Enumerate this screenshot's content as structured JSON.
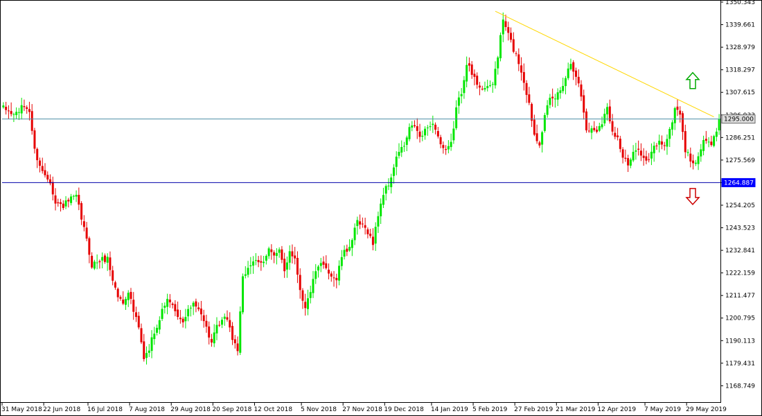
{
  "colors": {
    "background": "#ffffff",
    "frame": "#000000",
    "bull": "#00e600",
    "bear": "#e60000",
    "trendline": "#ffd700",
    "resistance_line": "#4e8fa6",
    "support_line": "#0000aa",
    "resistance_tag_bg": "#dddddd",
    "support_tag_bg": "#0000ff",
    "arrow_up": "#00aa00",
    "arrow_down": "#cc0000"
  },
  "chart_data": {
    "type": "candlestick",
    "ylim": [
      1161.0,
      1350.343
    ],
    "y_ticks": [
      1350.343,
      1339.661,
      1328.979,
      1318.297,
      1307.615,
      1296.933,
      1286.251,
      1275.569,
      1264.887,
      1254.205,
      1243.523,
      1232.841,
      1222.159,
      1211.477,
      1200.795,
      1190.113,
      1179.431,
      1168.749
    ],
    "y_tick_labels": [
      "1350.343",
      "1339.661",
      "1328.979",
      "1318.297",
      "1307.615",
      "1296.933",
      "1286.251",
      "1275.569",
      "1264.887",
      "1254.205",
      "1243.523",
      "1232.841",
      "1222.159",
      "1211.477",
      "1200.795",
      "1190.113",
      "1179.431",
      "1168.749"
    ],
    "x_tick_labels": [
      "31 May 2018",
      "22 Jun 2018",
      "16 Jul 2018",
      "7 Aug 2018",
      "29 Aug 2018",
      "20 Sep 2018",
      "12 Oct 2018",
      "5 Nov 2018",
      "27 Nov 2018",
      "19 Dec 2018",
      "14 Jan 2019",
      "5 Feb 2019",
      "27 Feb 2019",
      "21 Mar 2019",
      "12 Apr 2019",
      "7 May 2019",
      "29 May 2019"
    ],
    "x_tick_candle_index": [
      0,
      16,
      33,
      49,
      65,
      81,
      97,
      115,
      131,
      147,
      165,
      181,
      197,
      213,
      229,
      247,
      263
    ],
    "close_anchors": [
      [
        0,
        1300.0
      ],
      [
        4,
        1297.0
      ],
      [
        8,
        1301.0
      ],
      [
        10,
        1299.0
      ],
      [
        12,
        1280.0
      ],
      [
        15,
        1270.0
      ],
      [
        18,
        1266.0
      ],
      [
        20,
        1255.0
      ],
      [
        23,
        1254.0
      ],
      [
        26,
        1257.0
      ],
      [
        28,
        1258.0
      ],
      [
        31,
        1243.0
      ],
      [
        34,
        1226.0
      ],
      [
        37,
        1228.0
      ],
      [
        40,
        1229.0
      ],
      [
        42,
        1219.0
      ],
      [
        44,
        1211.0
      ],
      [
        46,
        1208.0
      ],
      [
        48,
        1214.0
      ],
      [
        50,
        1204.0
      ],
      [
        52,
        1196.0
      ],
      [
        54,
        1181.0
      ],
      [
        56,
        1186.0
      ],
      [
        58,
        1195.0
      ],
      [
        60,
        1200.0
      ],
      [
        62,
        1208.0
      ],
      [
        64,
        1209.0
      ],
      [
        66,
        1203.0
      ],
      [
        68,
        1199.0
      ],
      [
        70,
        1201.0
      ],
      [
        72,
        1207.0
      ],
      [
        74,
        1206.0
      ],
      [
        76,
        1204.0
      ],
      [
        78,
        1196.0
      ],
      [
        80,
        1189.0
      ],
      [
        82,
        1196.0
      ],
      [
        84,
        1199.0
      ],
      [
        86,
        1201.0
      ],
      [
        88,
        1191.0
      ],
      [
        90,
        1186.0
      ],
      [
        92,
        1219.0
      ],
      [
        94,
        1225.0
      ],
      [
        96,
        1228.0
      ],
      [
        98,
        1226.0
      ],
      [
        100,
        1227.0
      ],
      [
        102,
        1235.0
      ],
      [
        104,
        1230.0
      ],
      [
        106,
        1232.0
      ],
      [
        108,
        1223.0
      ],
      [
        110,
        1233.0
      ],
      [
        112,
        1229.0
      ],
      [
        114,
        1215.0
      ],
      [
        116,
        1205.0
      ],
      [
        118,
        1214.0
      ],
      [
        120,
        1222.0
      ],
      [
        122,
        1226.0
      ],
      [
        124,
        1225.0
      ],
      [
        126,
        1221.0
      ],
      [
        128,
        1219.0
      ],
      [
        130,
        1230.0
      ],
      [
        132,
        1233.0
      ],
      [
        134,
        1238.0
      ],
      [
        136,
        1246.0
      ],
      [
        138,
        1244.0
      ],
      [
        140,
        1242.0
      ],
      [
        142,
        1236.0
      ],
      [
        144,
        1250.0
      ],
      [
        146,
        1260.0
      ],
      [
        148,
        1264.0
      ],
      [
        150,
        1272.0
      ],
      [
        152,
        1280.0
      ],
      [
        154,
        1282.0
      ],
      [
        156,
        1290.0
      ],
      [
        158,
        1292.0
      ],
      [
        160,
        1286.0
      ],
      [
        162,
        1289.0
      ],
      [
        164,
        1293.0
      ],
      [
        166,
        1291.0
      ],
      [
        168,
        1283.0
      ],
      [
        170,
        1279.0
      ],
      [
        172,
        1283.0
      ],
      [
        174,
        1300.0
      ],
      [
        176,
        1308.0
      ],
      [
        178,
        1322.0
      ],
      [
        180,
        1316.0
      ],
      [
        182,
        1312.0
      ],
      [
        184,
        1310.0
      ],
      [
        186,
        1309.0
      ],
      [
        188,
        1312.0
      ],
      [
        190,
        1325.0
      ],
      [
        192,
        1342.0
      ],
      [
        194,
        1335.0
      ],
      [
        196,
        1328.0
      ],
      [
        198,
        1322.0
      ],
      [
        200,
        1313.0
      ],
      [
        202,
        1302.0
      ],
      [
        204,
        1288.0
      ],
      [
        206,
        1284.0
      ],
      [
        208,
        1296.0
      ],
      [
        210,
        1304.0
      ],
      [
        212,
        1305.0
      ],
      [
        214,
        1309.0
      ],
      [
        216,
        1315.0
      ],
      [
        218,
        1322.0
      ],
      [
        220,
        1316.0
      ],
      [
        222,
        1306.0
      ],
      [
        224,
        1290.0
      ],
      [
        226,
        1290.0
      ],
      [
        228,
        1290.0
      ],
      [
        230,
        1294.0
      ],
      [
        232,
        1300.0
      ],
      [
        234,
        1290.0
      ],
      [
        236,
        1286.0
      ],
      [
        238,
        1277.0
      ],
      [
        240,
        1273.0
      ],
      [
        242,
        1278.0
      ],
      [
        244,
        1282.0
      ],
      [
        246,
        1276.0
      ],
      [
        248,
        1275.0
      ],
      [
        250,
        1282.0
      ],
      [
        252,
        1284.0
      ],
      [
        254,
        1283.0
      ],
      [
        256,
        1289.0
      ],
      [
        258,
        1300.0
      ],
      [
        260,
        1298.0
      ],
      [
        262,
        1280.0
      ],
      [
        264,
        1276.0
      ],
      [
        266,
        1273.0
      ],
      [
        268,
        1282.0
      ],
      [
        270,
        1285.0
      ],
      [
        272,
        1282.0
      ],
      [
        274,
        1290.0
      ],
      [
        275,
        1295.0
      ]
    ],
    "candle_count": 276,
    "trendline": {
      "from": [
        189,
        1346.0
      ],
      "to": [
        273,
        1296.0
      ]
    },
    "horizontal_lines": [
      {
        "name": "resistance",
        "value": 1295.0,
        "label": "1295.000"
      },
      {
        "name": "support",
        "value": 1264.887,
        "label": "1264.887"
      }
    ],
    "signals": [
      {
        "name": "up",
        "direction": "up",
        "value": 1313.0
      },
      {
        "name": "down",
        "direction": "down",
        "value": 1258.5
      }
    ],
    "grid": false,
    "title": "",
    "xlabel": "",
    "ylabel": ""
  }
}
